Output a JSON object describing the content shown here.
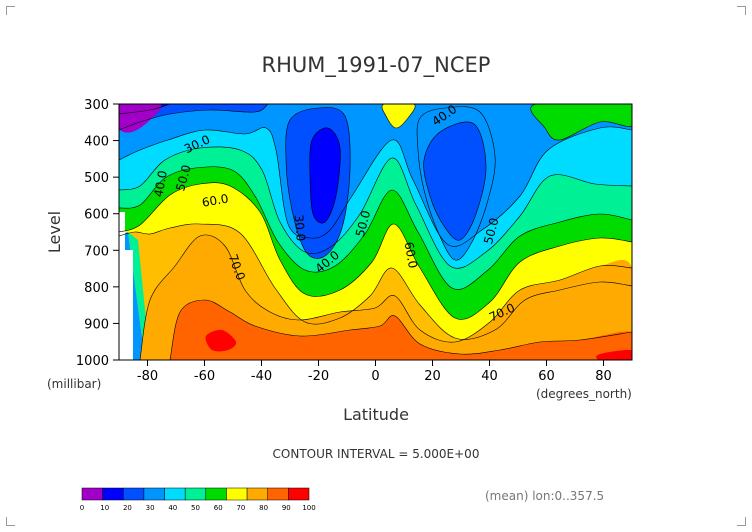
{
  "chart_data": {
    "type": "heatmap",
    "title": "RHUM_1991-07_NCEP",
    "xlabel": "Latitude",
    "ylabel": "Level",
    "x_unit": "(degrees_north)",
    "y_unit": "(millibar)",
    "xlim": [
      -90,
      90
    ],
    "ylim": [
      1000,
      300
    ],
    "x_ticks": [
      "-80",
      "-60",
      "-40",
      "-20",
      "0",
      "20",
      "40",
      "60",
      "80"
    ],
    "y_ticks": [
      "300",
      "400",
      "500",
      "600",
      "700",
      "800",
      "900",
      "1000"
    ],
    "contour_interval_text": "CONTOUR INTERVAL = 5.000E+00",
    "footnote": "(mean) lon:0..357.5",
    "contour_labels": [
      {
        "text": "30.0",
        "lat": -62,
        "level": 420,
        "angle": -25
      },
      {
        "text": "40.0",
        "lat": -74,
        "level": 520,
        "angle": -80
      },
      {
        "text": "50.0",
        "lat": -66,
        "level": 505,
        "angle": -75
      },
      {
        "text": "60.0",
        "lat": -56,
        "level": 575,
        "angle": -10
      },
      {
        "text": "70.0",
        "lat": -50,
        "level": 750,
        "angle": 70
      },
      {
        "text": "30.0",
        "lat": -28,
        "level": 640,
        "angle": 85
      },
      {
        "text": "40.0",
        "lat": -16,
        "level": 740,
        "angle": -40
      },
      {
        "text": "50.0",
        "lat": -3,
        "level": 630,
        "angle": -75
      },
      {
        "text": "60.0",
        "lat": 11,
        "level": 715,
        "angle": 80
      },
      {
        "text": "40.0",
        "lat": 25,
        "level": 340,
        "angle": -35
      },
      {
        "text": "50.0",
        "lat": 42,
        "level": 650,
        "angle": -75
      },
      {
        "text": "70.0",
        "lat": 45,
        "level": 880,
        "angle": -25
      }
    ],
    "color_bar": {
      "ticks": [
        "0",
        "10",
        "20",
        "30",
        "40",
        "50",
        "60",
        "70",
        "80",
        "90",
        "100"
      ],
      "colors": [
        "#a000c8",
        "#0000ff",
        "#0050ff",
        "#0096ff",
        "#00dcff",
        "#00f096",
        "#00dc00",
        "#ffff00",
        "#ffaa00",
        "#ff6400",
        "#ff0000"
      ]
    },
    "grid": false
  }
}
